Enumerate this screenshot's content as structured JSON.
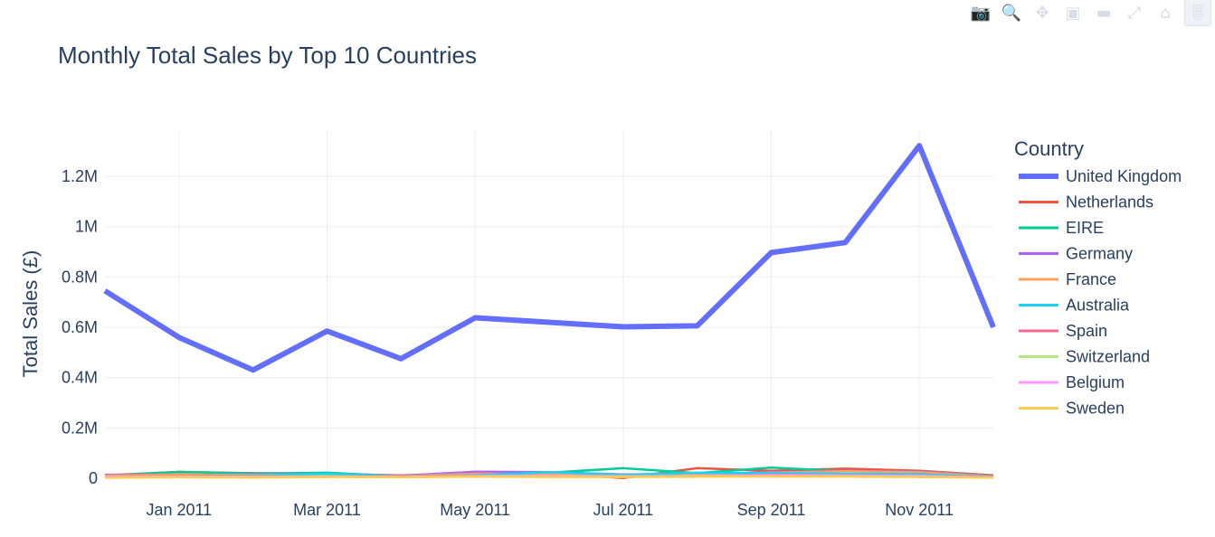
{
  "chart_data": {
    "type": "line",
    "title": "Monthly Total Sales by Top 10 Countries",
    "xlabel": "",
    "ylabel": "Total Sales (£)",
    "x": [
      "2010-12",
      "2011-01",
      "2011-02",
      "2011-03",
      "2011-04",
      "2011-05",
      "2011-06",
      "2011-07",
      "2011-08",
      "2011-09",
      "2011-10",
      "2011-11",
      "2011-12"
    ],
    "x_tick_labels": [
      "Jan 2011",
      "Mar 2011",
      "May 2011",
      "Jul 2011",
      "Sep 2011",
      "Nov 2011"
    ],
    "x_tick_dates": [
      "2011-01",
      "2011-03",
      "2011-05",
      "2011-07",
      "2011-09",
      "2011-11"
    ],
    "y_tick_labels": [
      "0",
      "0.2M",
      "0.4M",
      "0.6M",
      "0.8M",
      "1M",
      "1.2M"
    ],
    "y_tick_values": [
      0,
      200000,
      400000,
      600000,
      800000,
      1000000,
      1200000
    ],
    "ylim": [
      0,
      1380000
    ],
    "grid": true,
    "legend_title": "Country",
    "legend_position": "right",
    "series": [
      {
        "name": "United Kingdom",
        "color": "#636efa",
        "values": [
          745000,
          560000,
          430000,
          585000,
          475000,
          638000,
          620000,
          602000,
          606000,
          897000,
          937000,
          1322000,
          600000
        ]
      },
      {
        "name": "Netherlands",
        "color": "#ef553b",
        "values": [
          12000,
          25000,
          20000,
          18000,
          11000,
          22000,
          20000,
          1000,
          40000,
          30000,
          38000,
          30000,
          12000
        ]
      },
      {
        "name": "EIRE",
        "color": "#00cc96",
        "values": [
          10000,
          25000,
          19000,
          22000,
          8000,
          15000,
          22000,
          40000,
          20000,
          42000,
          28000,
          26000,
          10000
        ]
      },
      {
        "name": "Germany",
        "color": "#ab63fa",
        "values": [
          14000,
          14000,
          15000,
          17000,
          10000,
          26000,
          24000,
          15000,
          16000,
          24000,
          30000,
          26000,
          8000
        ]
      },
      {
        "name": "France",
        "color": "#ffa15a",
        "values": [
          10000,
          15000,
          13000,
          16000,
          8000,
          18000,
          16000,
          14000,
          14000,
          22000,
          28000,
          24000,
          6000
        ]
      },
      {
        "name": "Australia",
        "color": "#19d3f3",
        "values": [
          5000,
          8000,
          10000,
          18000,
          6000,
          12000,
          24000,
          14000,
          22000,
          20000,
          18000,
          16000,
          4000
        ]
      },
      {
        "name": "Spain",
        "color": "#ff6692",
        "values": [
          6000,
          8000,
          7000,
          8000,
          6000,
          10000,
          10000,
          9000,
          8000,
          14000,
          12000,
          10000,
          4000
        ]
      },
      {
        "name": "Switzerland",
        "color": "#b6e880",
        "values": [
          5000,
          7000,
          6000,
          8000,
          5000,
          9000,
          10000,
          8000,
          9000,
          12000,
          11000,
          9000,
          3000
        ]
      },
      {
        "name": "Belgium",
        "color": "#ff97ff",
        "values": [
          4000,
          6000,
          5000,
          7000,
          5000,
          8000,
          9000,
          7000,
          8000,
          11000,
          10000,
          10000,
          3000
        ]
      },
      {
        "name": "Sweden",
        "color": "#fecb52",
        "values": [
          2000,
          4000,
          3000,
          5000,
          4000,
          6000,
          5000,
          5000,
          6000,
          7000,
          6000,
          5000,
          2000
        ]
      }
    ]
  },
  "modebar": {
    "icons": [
      "camera-icon",
      "zoom-icon",
      "pan-icon",
      "zoom-in-icon",
      "zoom-out-icon",
      "autoscale-icon",
      "reset-axes-icon",
      "plotly-logo-icon"
    ]
  }
}
